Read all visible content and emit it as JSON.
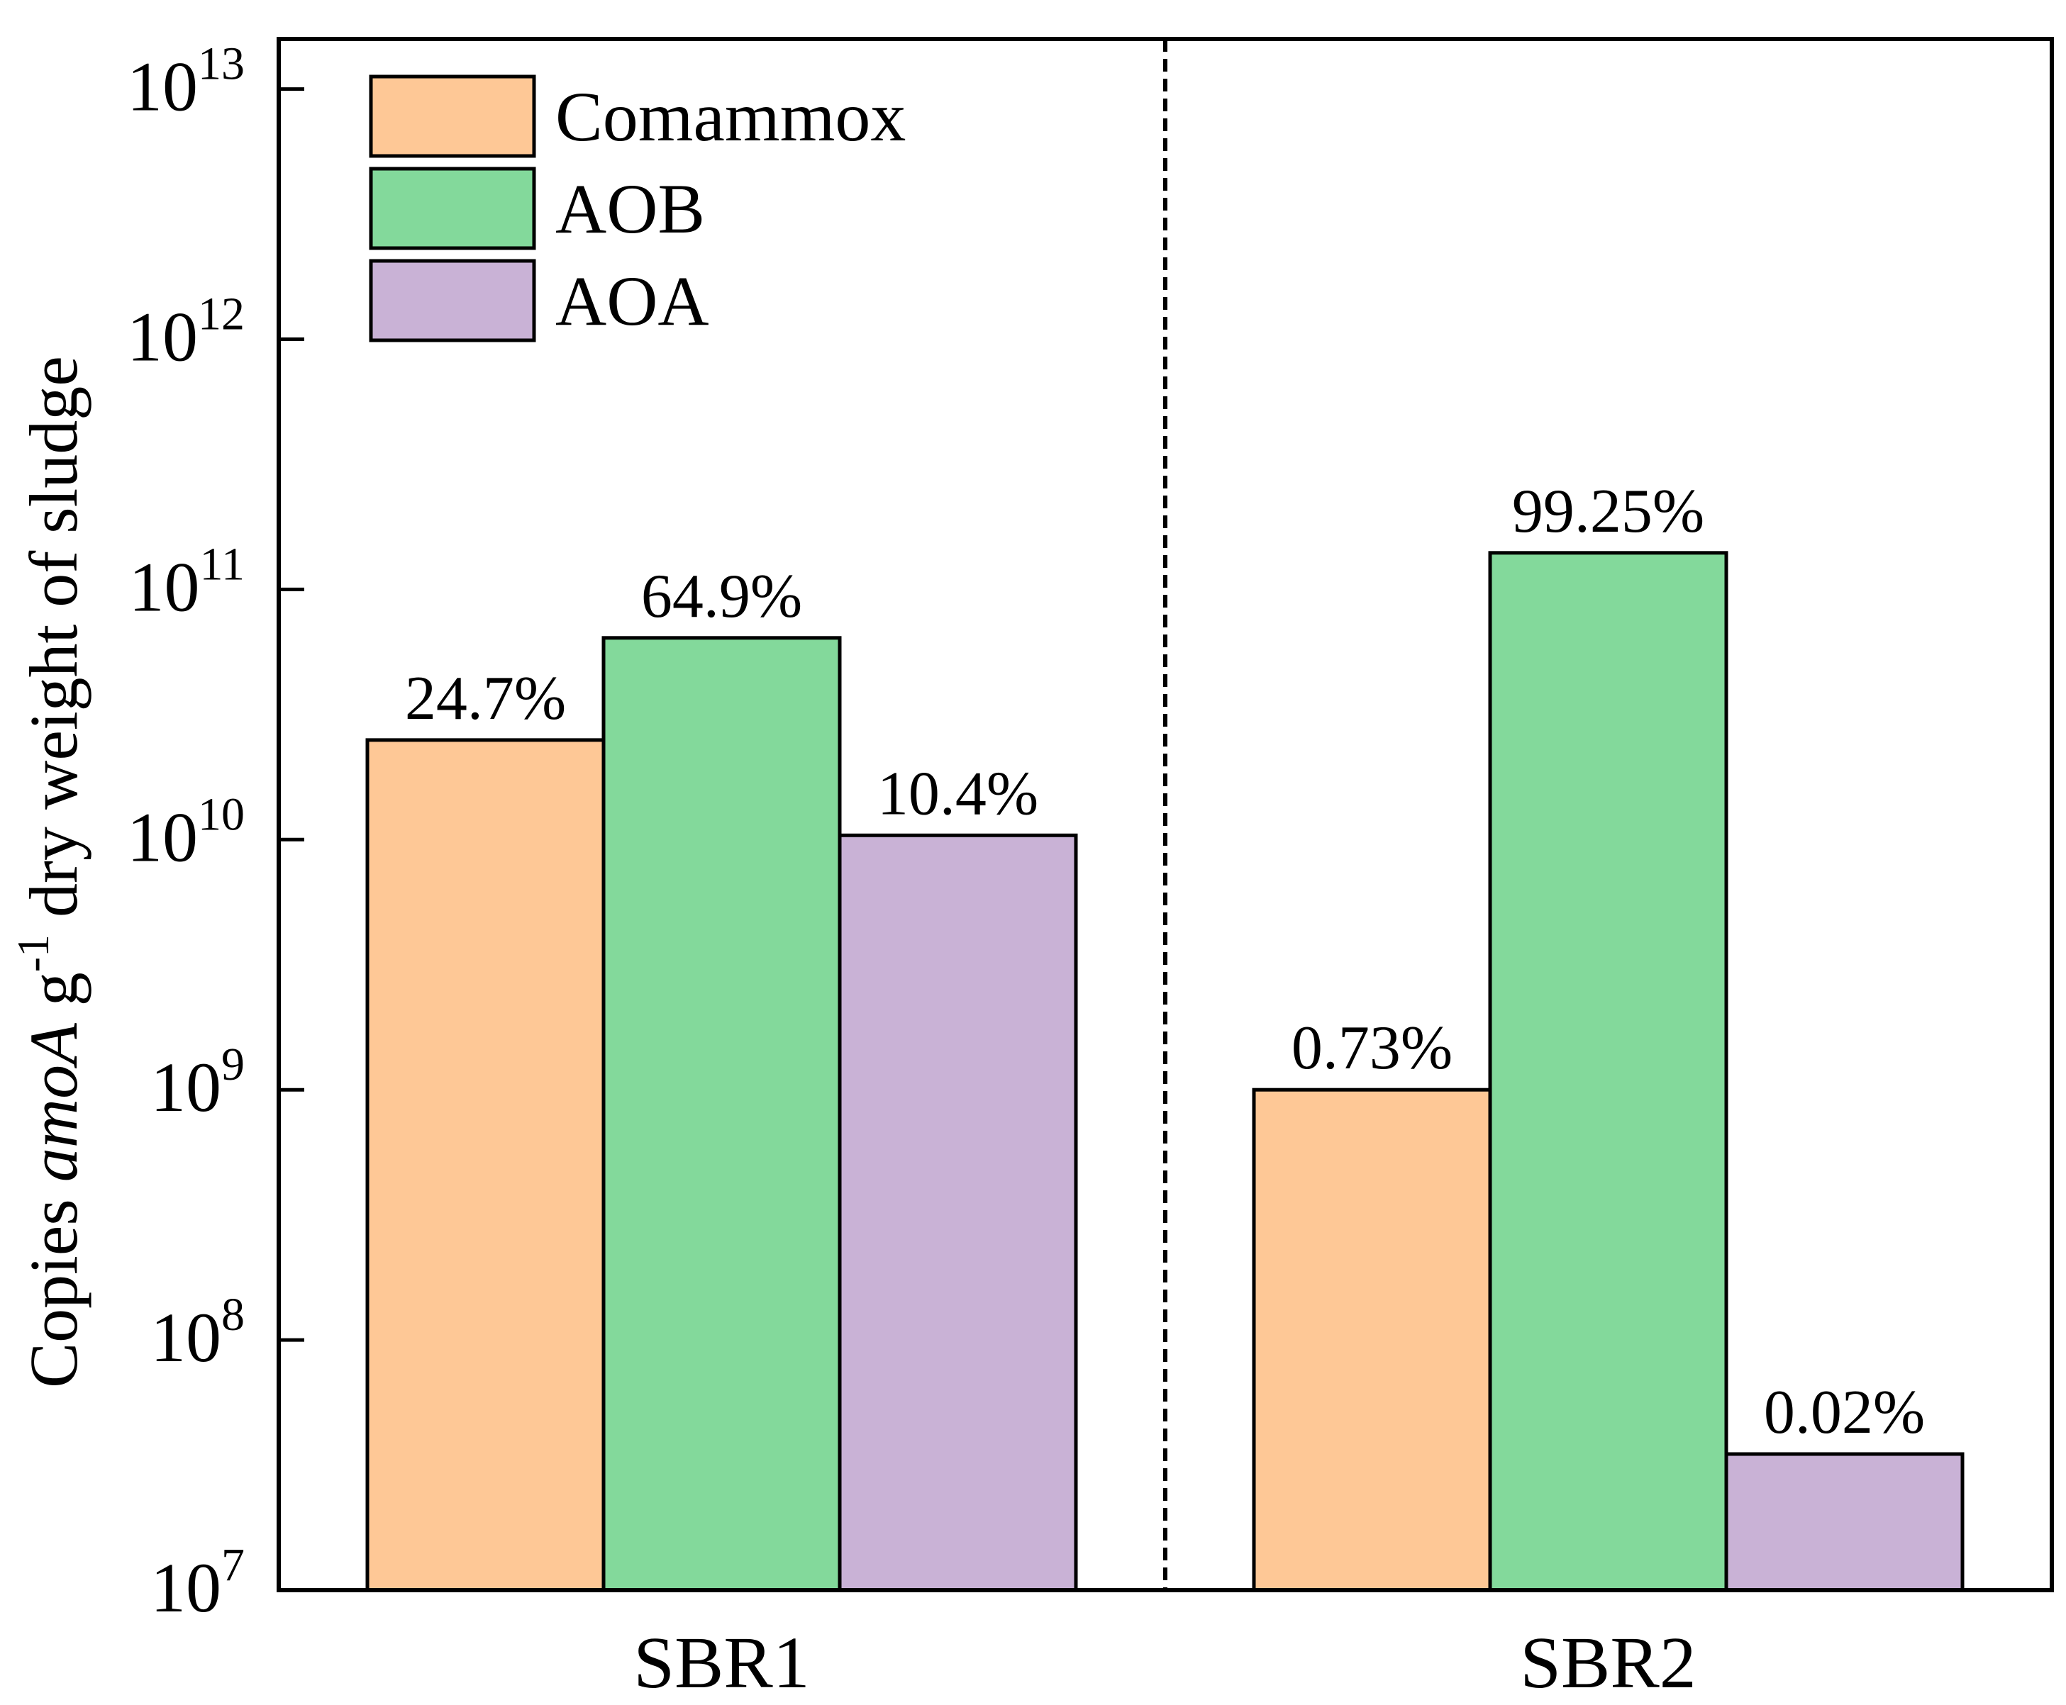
{
  "chart_data": {
    "type": "bar",
    "yscale": "log",
    "categories": [
      "SBR1",
      "SBR2"
    ],
    "series": [
      {
        "name": "Comammox",
        "color": "#fec896",
        "values": [
          25000000000.0,
          1000000000.0
        ],
        "labels": [
          "24.7%",
          "0.73%"
        ]
      },
      {
        "name": "AOB",
        "color": "#83d99b",
        "values": [
          64000000000.0,
          140000000000.0
        ],
        "labels": [
          "64.9%",
          "99.25%"
        ]
      },
      {
        "name": "AOA",
        "color": "#c9b2d6",
        "values": [
          10400000000.0,
          35000000.0
        ],
        "labels": [
          "10.4%",
          "0.02%"
        ]
      }
    ],
    "ylabel": {
      "prefix": "Copies ",
      "italic": "amoA",
      "middle": " g",
      "superscript": "-1",
      "suffix": " dry weight of sludge"
    },
    "ylim_exponents": [
      7,
      13.2
    ],
    "yticks": [
      {
        "base": "10",
        "exp": "7"
      },
      {
        "base": "10",
        "exp": "8"
      },
      {
        "base": "10",
        "exp": "9"
      },
      {
        "base": "10",
        "exp": "10"
      },
      {
        "base": "10",
        "exp": "11"
      },
      {
        "base": "10",
        "exp": "12"
      },
      {
        "base": "10",
        "exp": "13"
      }
    ],
    "legend_position": "top-left",
    "group_separator": "dashed"
  }
}
